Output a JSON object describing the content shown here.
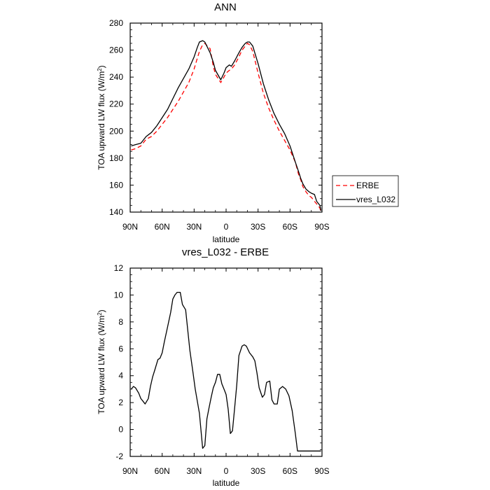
{
  "chart_data": [
    {
      "type": "line",
      "title": "ANN",
      "xlabel": "latitude",
      "ylabel": "TOA upward LW flux (W/m²)",
      "xlim": [
        90,
        -90
      ],
      "ylim": [
        140,
        280
      ],
      "xticks": [
        90,
        60,
        30,
        0,
        -30,
        -60,
        -90
      ],
      "xtick_labels": [
        "90N",
        "60N",
        "30N",
        "0",
        "30S",
        "60S",
        "90S"
      ],
      "yticks": [
        140,
        160,
        180,
        200,
        220,
        240,
        260,
        280
      ],
      "ytick_labels": [
        "140",
        "160",
        "180",
        "200",
        "220",
        "240",
        "260",
        "280"
      ],
      "legend_position": "right",
      "series": [
        {
          "name": "ERBE",
          "color": "#ff0000",
          "dash": "dashed",
          "x": [
            89,
            85,
            80,
            75,
            70,
            65,
            60,
            55,
            50,
            45,
            40,
            35,
            30,
            27,
            25,
            22,
            20,
            15,
            12,
            10,
            5,
            2,
            0,
            -3,
            -5,
            -8,
            -12,
            -15,
            -18,
            -20,
            -22,
            -25,
            -30,
            -35,
            -40,
            -45,
            -50,
            -55,
            -60,
            -65,
            -68,
            -70,
            -72,
            -75,
            -78,
            -80,
            -83,
            -85,
            -88,
            -89
          ],
          "y": [
            186,
            187,
            189,
            194,
            196,
            200,
            205,
            210,
            216,
            222,
            229,
            236,
            246,
            254,
            259,
            264,
            265,
            261,
            248,
            242,
            236,
            240,
            243,
            245,
            246,
            249,
            255,
            260,
            263,
            265,
            264,
            259,
            243,
            228,
            217,
            208,
            200,
            193,
            186,
            177,
            168,
            164,
            159,
            155,
            152,
            151,
            148,
            146,
            143,
            140
          ]
        },
        {
          "name": "vres_L032",
          "color": "#000000",
          "dash": "solid",
          "x": [
            89,
            85,
            80,
            75,
            70,
            65,
            60,
            55,
            50,
            45,
            40,
            35,
            30,
            27,
            25,
            22,
            20,
            15,
            12,
            10,
            5,
            2,
            0,
            -3,
            -5,
            -8,
            -12,
            -15,
            -18,
            -20,
            -22,
            -25,
            -30,
            -35,
            -40,
            -45,
            -50,
            -55,
            -60,
            -65,
            -68,
            -70,
            -72,
            -75,
            -78,
            -80,
            -83,
            -85,
            -88,
            -89
          ],
          "y": [
            189,
            190,
            191,
            196,
            199,
            204,
            210,
            216,
            224,
            232,
            239,
            246,
            255,
            262,
            266,
            267,
            266,
            258,
            251,
            245,
            238,
            243,
            247,
            249,
            248,
            252,
            258,
            262,
            265,
            266,
            266,
            263,
            250,
            235,
            223,
            213,
            205,
            198,
            189,
            177,
            170,
            165,
            161,
            157,
            155,
            154,
            153,
            148,
            145,
            141
          ]
        }
      ]
    },
    {
      "type": "line",
      "title": "vres_L032 - ERBE",
      "xlabel": "latitude",
      "ylabel": "TOA upward LW flux (W/m²)",
      "xlim": [
        90,
        -90
      ],
      "ylim": [
        -2,
        12
      ],
      "xticks": [
        90,
        60,
        30,
        0,
        -30,
        -60,
        -90
      ],
      "xtick_labels": [
        "90N",
        "60N",
        "30N",
        "0",
        "30S",
        "60S",
        "90S"
      ],
      "yticks": [
        -2,
        0,
        2,
        4,
        6,
        8,
        10,
        12
      ],
      "ytick_labels": [
        "-2",
        "0",
        "2",
        "4",
        "6",
        "8",
        "10",
        "12"
      ],
      "series": [
        {
          "color": "#000000",
          "dash": "solid",
          "x": [
            89,
            87,
            85,
            82,
            80,
            78,
            76,
            73,
            71,
            69,
            67,
            64,
            62,
            60,
            58,
            55,
            52,
            50,
            48,
            46,
            43,
            41,
            38,
            36,
            34,
            31,
            29,
            27,
            25,
            22,
            20,
            18,
            16,
            14,
            12,
            10,
            8,
            6,
            4,
            2,
            0,
            -2,
            -4,
            -6,
            -8,
            -10,
            -12,
            -15,
            -17,
            -19,
            -22,
            -25,
            -27,
            -29,
            -31,
            -34,
            -36,
            -38,
            -41,
            -43,
            -45,
            -48,
            -50,
            -53,
            -56,
            -59,
            -62,
            -65,
            -67,
            -69,
            -71,
            -73,
            -75,
            -77,
            -79,
            -80,
            -82,
            -84,
            -87,
            -89
          ],
          "y": [
            3.0,
            3.2,
            3.1,
            2.7,
            2.3,
            2.1,
            1.9,
            2.3,
            3.2,
            3.9,
            4.4,
            5.2,
            5.3,
            5.7,
            6.5,
            7.6,
            8.7,
            9.7,
            10.0,
            10.2,
            10.2,
            9.3,
            8.9,
            7.4,
            5.9,
            4.2,
            3.0,
            2.1,
            1.2,
            -1.4,
            -1.2,
            0.8,
            1.6,
            2.4,
            3.1,
            3.5,
            4.1,
            4.1,
            3.4,
            3.0,
            2.6,
            1.5,
            -0.3,
            -0.1,
            1.6,
            3.3,
            5.5,
            6.2,
            6.3,
            6.2,
            5.7,
            5.4,
            5.1,
            4.2,
            3.1,
            2.4,
            2.6,
            3.5,
            3.6,
            2.2,
            1.9,
            1.9,
            3.0,
            3.2,
            3.0,
            2.5,
            1.4,
            -0.3,
            -1.6,
            -1.6,
            -1.6,
            -1.6,
            -1.6,
            -1.6,
            -1.6,
            -1.6,
            -1.6,
            -1.6,
            -1.6,
            -1.6
          ]
        }
      ]
    }
  ]
}
